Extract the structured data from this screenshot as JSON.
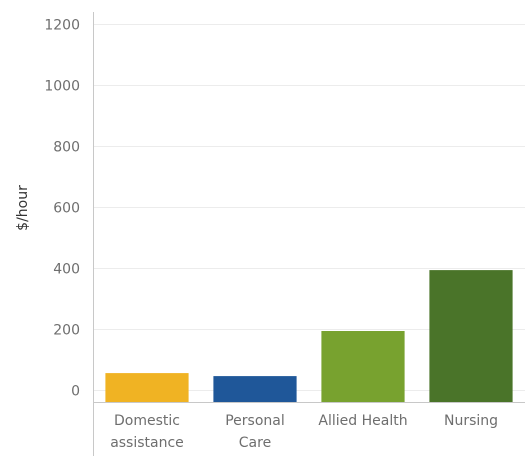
{
  "chart_data": {
    "type": "bar",
    "title": "",
    "xlabel": "",
    "ylabel": "$/hour",
    "ylim": [
      -40,
      1240
    ],
    "yticks": [
      0,
      200,
      400,
      600,
      800,
      1000,
      1200
    ],
    "grid": true,
    "categories": [
      [
        "Domestic",
        "assistance"
      ],
      [
        "Personal",
        "Care"
      ],
      [
        "Allied Health"
      ],
      [
        "Nursing"
      ]
    ],
    "values": [
      55,
      45,
      193,
      393
    ],
    "colors": [
      "#f0b323",
      "#1f5799",
      "#78a22f",
      "#4a7429"
    ]
  }
}
